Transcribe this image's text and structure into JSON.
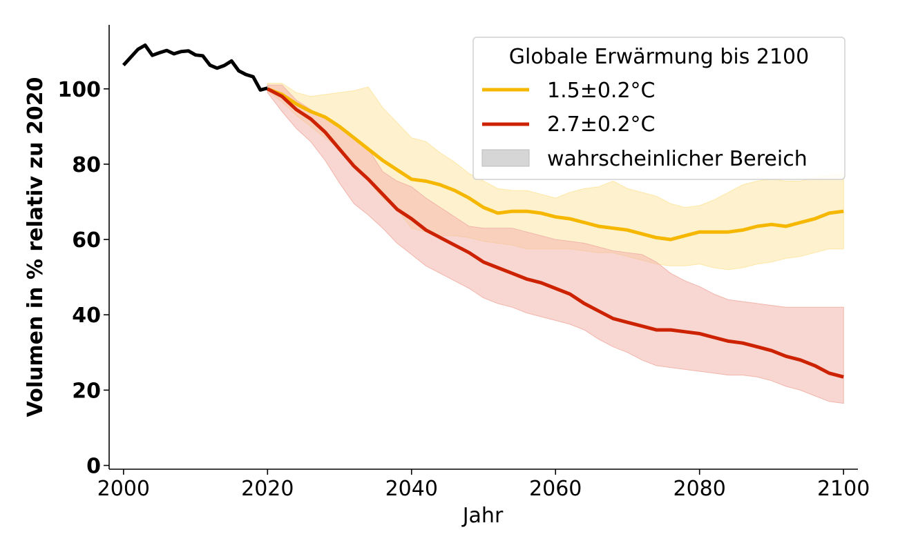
{
  "chart_data": {
    "type": "line",
    "title": "",
    "xlabel": "Jahr",
    "ylabel": "Volumen in % relativ zu 2020",
    "xlim": [
      1998,
      2102
    ],
    "ylim": [
      -1,
      117
    ],
    "xticks": [
      "2000",
      "2020",
      "2040",
      "2060",
      "2080",
      "2100"
    ],
    "yticks": [
      "0",
      "20",
      "40",
      "60",
      "80",
      "100"
    ],
    "grid": false,
    "legend": {
      "title": "Globale Erwärmung bis 2100",
      "placement": "top-right",
      "range_label": "wahrscheinlicher Bereich",
      "range_color": "#d6d6d6"
    },
    "historical": {
      "color": "#000000",
      "x": [
        2000,
        2001,
        2002,
        2003,
        2004,
        2005,
        2006,
        2007,
        2008,
        2009,
        2010,
        2011,
        2012,
        2013,
        2014,
        2015,
        2016,
        2017,
        2018,
        2019,
        2020
      ],
      "y": [
        106.3,
        108.4,
        110.5,
        111.6,
        108.9,
        109.6,
        110.2,
        109.3,
        109.9,
        110.1,
        109.0,
        108.8,
        106.3,
        105.5,
        106.2,
        107.4,
        104.8,
        103.8,
        103.2,
        99.7,
        100.2
      ]
    },
    "series": [
      {
        "name": "1.5±0.2°C",
        "color": "#f5b700",
        "band_color": "#fde7a6",
        "x": [
          2020,
          2022,
          2024,
          2026,
          2028,
          2030,
          2032,
          2034,
          2036,
          2038,
          2040,
          2042,
          2044,
          2046,
          2048,
          2050,
          2052,
          2054,
          2056,
          2058,
          2060,
          2062,
          2064,
          2066,
          2068,
          2070,
          2072,
          2074,
          2076,
          2078,
          2080,
          2082,
          2084,
          2086,
          2088,
          2090,
          2092,
          2094,
          2096,
          2098,
          2100
        ],
        "y": [
          100.0,
          98.5,
          96.0,
          94.0,
          92.5,
          90.0,
          87.0,
          84.0,
          81.0,
          78.5,
          76.0,
          75.5,
          74.5,
          73.0,
          71.0,
          68.5,
          67.0,
          67.5,
          67.5,
          67.0,
          66.0,
          65.5,
          64.5,
          63.5,
          63.0,
          62.5,
          61.5,
          60.5,
          60.0,
          61.0,
          62.0,
          62.0,
          62.0,
          62.5,
          63.5,
          64.0,
          63.5,
          64.5,
          65.5,
          67.0,
          67.5
        ],
        "upper": [
          101.5,
          101.5,
          99.0,
          98.0,
          98.5,
          99.0,
          99.5,
          100.5,
          95.0,
          91.0,
          87.0,
          86.0,
          83.0,
          80.5,
          77.5,
          75.5,
          73.5,
          73.0,
          73.0,
          72.0,
          71.0,
          72.5,
          73.5,
          74.0,
          75.5,
          73.5,
          72.5,
          71.5,
          69.5,
          68.5,
          69.0,
          70.5,
          72.5,
          74.5,
          75.5,
          76.0,
          75.5,
          75.5,
          76.5,
          77.0,
          77.5
        ],
        "lower": [
          99.5,
          96.5,
          93.0,
          90.0,
          87.0,
          84.0,
          80.5,
          75.5,
          71.0,
          68.0,
          63.0,
          62.0,
          61.0,
          61.0,
          60.5,
          59.5,
          59.0,
          58.5,
          57.5,
          57.5,
          57.5,
          57.5,
          57.0,
          56.5,
          56.5,
          55.5,
          54.5,
          53.5,
          53.0,
          53.0,
          53.5,
          52.5,
          52.0,
          52.5,
          53.5,
          54.0,
          55.0,
          55.5,
          56.5,
          57.5,
          57.5
        ]
      },
      {
        "name": "2.7±0.2°C",
        "color": "#cc2200",
        "band_color": "#f2b5ab",
        "x": [
          2020,
          2022,
          2024,
          2026,
          2028,
          2030,
          2032,
          2034,
          2036,
          2038,
          2040,
          2042,
          2044,
          2046,
          2048,
          2050,
          2052,
          2054,
          2056,
          2058,
          2060,
          2062,
          2064,
          2066,
          2068,
          2070,
          2072,
          2074,
          2076,
          2078,
          2080,
          2082,
          2084,
          2086,
          2088,
          2090,
          2092,
          2094,
          2096,
          2098,
          2100
        ],
        "y": [
          100.0,
          98.0,
          94.5,
          92.0,
          88.5,
          84.0,
          79.5,
          76.0,
          72.0,
          68.0,
          65.5,
          62.5,
          60.5,
          58.5,
          56.5,
          54.0,
          52.5,
          51.0,
          49.5,
          48.5,
          47.0,
          45.5,
          43.0,
          41.0,
          39.0,
          38.0,
          37.0,
          36.0,
          36.0,
          35.5,
          35.0,
          34.0,
          33.0,
          32.5,
          31.5,
          30.5,
          29.0,
          28.0,
          26.5,
          24.5,
          23.5
        ],
        "upper": [
          101.0,
          101.0,
          97.0,
          94.5,
          92.0,
          90.0,
          87.0,
          84.0,
          78.0,
          75.5,
          74.0,
          71.0,
          68.5,
          66.0,
          63.5,
          63.0,
          63.0,
          63.0,
          62.0,
          61.0,
          60.0,
          59.5,
          59.0,
          58.0,
          57.0,
          56.5,
          56.0,
          54.0,
          51.0,
          49.0,
          47.5,
          45.5,
          44.0,
          43.5,
          43.0,
          42.5,
          42.0,
          42.0,
          42.0,
          42.0,
          42.0
        ],
        "lower": [
          99.0,
          94.0,
          89.5,
          86.0,
          81.0,
          75.0,
          69.5,
          66.5,
          63.0,
          59.0,
          56.0,
          53.0,
          51.0,
          49.0,
          47.0,
          44.5,
          43.0,
          42.0,
          40.5,
          39.5,
          38.5,
          37.5,
          36.0,
          33.5,
          31.5,
          30.0,
          28.0,
          26.5,
          26.0,
          25.5,
          25.0,
          24.5,
          24.0,
          24.0,
          23.5,
          22.5,
          21.0,
          20.0,
          18.5,
          17.0,
          16.5
        ]
      }
    ]
  }
}
